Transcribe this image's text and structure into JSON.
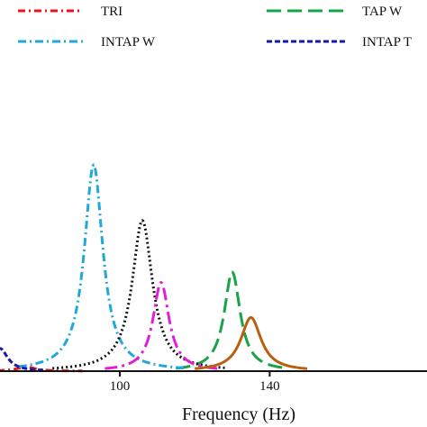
{
  "chart_data": {
    "type": "line",
    "title": "",
    "xlabel": "Frequency (Hz)",
    "ylabel": "",
    "xlim": [
      68,
      182
    ],
    "ylim": [
      0,
      1.1
    ],
    "x_ticks": [
      {
        "value": 100,
        "label": "100"
      },
      {
        "value": 140,
        "label": "140"
      }
    ],
    "legend_position": "top",
    "grid": false,
    "series": [
      {
        "name": "TRI",
        "color": "#e8141c",
        "dash": "8,4,2,4",
        "width": 3,
        "in_legend": true,
        "legend_slot": 0,
        "peak_x": 75,
        "peak_y": 0.02,
        "hwhm": 3,
        "x_range": [
          60,
          90
        ]
      },
      {
        "name": "TAP W",
        "color": "#19a347",
        "dash": "16,7",
        "width": 3,
        "in_legend": true,
        "legend_slot": 1,
        "peak_x": 130,
        "peak_y": 0.48,
        "hwhm": 2.6,
        "x_range": [
          115,
          145
        ]
      },
      {
        "name": "INTAP W",
        "color": "#22a7d8",
        "dash": "9,4,2,4",
        "width": 3,
        "in_legend": true,
        "legend_slot": 2,
        "peak_x": 93,
        "peak_y": 1.0,
        "hwhm": 3.0,
        "x_range": [
          73,
          118
        ]
      },
      {
        "name": "INTAP T",
        "color": "#1a1aa8",
        "dash": "6,3",
        "width": 3,
        "in_legend": true,
        "legend_slot": 3,
        "peak_x": 68,
        "peak_y": 0.11,
        "hwhm": 2.5,
        "x_range": [
          60,
          80
        ]
      },
      {
        "name": "",
        "color": "#111111",
        "dash": "2,3",
        "width": 3,
        "in_legend": false,
        "peak_x": 106,
        "peak_y": 0.73,
        "hwhm": 3.3,
        "x_range": [
          82,
          128
        ]
      },
      {
        "name": "",
        "color": "#e21fd8",
        "dash": "14,5,3,5",
        "width": 3,
        "in_legend": false,
        "peak_x": 111,
        "peak_y": 0.43,
        "hwhm": 2.6,
        "x_range": [
          96,
          126
        ]
      },
      {
        "name": "",
        "color": "#b8600f",
        "dash": "",
        "width": 3,
        "in_legend": false,
        "peak_x": 135,
        "peak_y": 0.26,
        "hwhm": 3.3,
        "x_range": [
          120,
          150
        ]
      }
    ]
  }
}
